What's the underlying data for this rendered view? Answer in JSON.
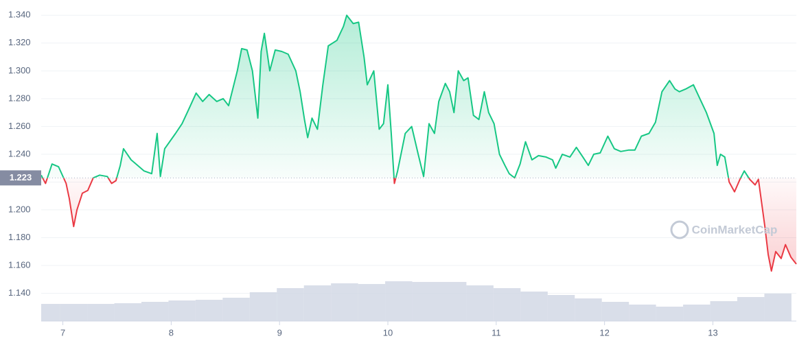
{
  "chart_data": {
    "type": "line",
    "x": [
      6.8,
      6.84,
      6.9,
      6.96,
      7.03,
      7.06,
      7.1,
      7.13,
      7.18,
      7.23,
      7.28,
      7.34,
      7.41,
      7.45,
      7.49,
      7.53,
      7.56,
      7.63,
      7.69,
      7.75,
      7.82,
      7.87,
      7.9,
      7.94,
      8.04,
      8.1,
      8.16,
      8.23,
      8.29,
      8.35,
      8.42,
      8.48,
      8.53,
      8.61,
      8.65,
      8.7,
      8.75,
      8.8,
      8.83,
      8.86,
      8.91,
      8.96,
      9.02,
      9.08,
      9.15,
      9.19,
      9.23,
      9.26,
      9.3,
      9.35,
      9.4,
      9.45,
      9.53,
      9.59,
      9.62,
      9.68,
      9.73,
      9.78,
      9.81,
      9.87,
      9.92,
      9.96,
      10.0,
      10.03,
      10.06,
      10.09,
      10.16,
      10.22,
      10.28,
      10.33,
      10.38,
      10.43,
      10.47,
      10.53,
      10.57,
      10.61,
      10.65,
      10.7,
      10.74,
      10.79,
      10.84,
      10.89,
      10.93,
      10.98,
      11.03,
      11.08,
      11.12,
      11.17,
      11.22,
      11.27,
      11.33,
      11.39,
      11.46,
      11.52,
      11.55,
      11.61,
      11.68,
      11.74,
      11.8,
      11.85,
      11.9,
      11.96,
      12.03,
      12.09,
      12.15,
      12.22,
      12.28,
      12.34,
      12.41,
      12.47,
      12.53,
      12.6,
      12.65,
      12.69,
      12.75,
      12.82,
      12.88,
      12.94,
      13.01,
      13.04,
      13.07,
      13.11,
      13.15,
      13.2,
      13.25,
      13.29,
      13.34,
      13.39,
      13.42,
      13.45,
      13.48,
      13.51,
      13.54,
      13.58,
      13.63,
      13.67,
      13.72,
      13.75,
      13.77
    ],
    "values": [
      1.225,
      1.219,
      1.233,
      1.231,
      1.219,
      1.208,
      1.188,
      1.2,
      1.212,
      1.214,
      1.223,
      1.225,
      1.224,
      1.219,
      1.221,
      1.232,
      1.244,
      1.236,
      1.232,
      1.228,
      1.226,
      1.255,
      1.224,
      1.244,
      1.255,
      1.262,
      1.272,
      1.284,
      1.278,
      1.283,
      1.278,
      1.28,
      1.275,
      1.3,
      1.316,
      1.315,
      1.3,
      1.266,
      1.314,
      1.327,
      1.3,
      1.315,
      1.314,
      1.312,
      1.3,
      1.285,
      1.265,
      1.252,
      1.266,
      1.258,
      1.29,
      1.318,
      1.322,
      1.332,
      1.34,
      1.334,
      1.335,
      1.31,
      1.29,
      1.3,
      1.258,
      1.262,
      1.29,
      1.256,
      1.219,
      1.228,
      1.255,
      1.26,
      1.24,
      1.224,
      1.262,
      1.255,
      1.278,
      1.291,
      1.285,
      1.27,
      1.3,
      1.293,
      1.295,
      1.268,
      1.265,
      1.285,
      1.27,
      1.262,
      1.24,
      1.232,
      1.226,
      1.223,
      1.233,
      1.249,
      1.236,
      1.239,
      1.238,
      1.236,
      1.23,
      1.24,
      1.238,
      1.245,
      1.238,
      1.232,
      1.24,
      1.241,
      1.253,
      1.244,
      1.242,
      1.243,
      1.243,
      1.253,
      1.255,
      1.263,
      1.285,
      1.293,
      1.287,
      1.285,
      1.287,
      1.29,
      1.28,
      1.27,
      1.255,
      1.232,
      1.24,
      1.238,
      1.22,
      1.213,
      1.222,
      1.228,
      1.222,
      1.218,
      1.222,
      1.205,
      1.188,
      1.168,
      1.156,
      1.17,
      1.165,
      1.175,
      1.166,
      1.163,
      1.161
    ],
    "up_color": "#16c784",
    "down_color": "#ea3943",
    "baseline": {
      "value": 1.223,
      "label": "1.223"
    },
    "xlim": [
      6.8,
      13.77
    ],
    "ylim": [
      1.12,
      1.351
    ],
    "xticks": [
      7,
      8,
      9,
      10,
      11,
      12,
      13
    ],
    "yticks": [
      {
        "value": 1.14,
        "label": "1.140"
      },
      {
        "value": 1.16,
        "label": "1.160"
      },
      {
        "value": 1.18,
        "label": "1.180"
      },
      {
        "value": 1.2,
        "label": "1.200"
      },
      {
        "value": 1.22,
        "label": "1.220"
      },
      {
        "value": 1.24,
        "label": "1.240"
      },
      {
        "value": 1.26,
        "label": "1.260"
      },
      {
        "value": 1.28,
        "label": "1.280"
      },
      {
        "value": 1.3,
        "label": "1.300"
      },
      {
        "value": 1.32,
        "label": "1.320"
      },
      {
        "value": 1.34,
        "label": "1.340"
      }
    ],
    "grid": true,
    "watermark": "CoinMarketCap",
    "volume": {
      "color": "#cfd6e4",
      "y2lim": [
        0,
        100
      ],
      "x": [
        6.85,
        7.1,
        7.35,
        7.6,
        7.85,
        8.1,
        8.35,
        8.6,
        8.85,
        9.1,
        9.35,
        9.6,
        9.85,
        10.1,
        10.35,
        10.6,
        10.85,
        11.1,
        11.35,
        11.6,
        11.85,
        12.1,
        12.35,
        12.6,
        12.85,
        13.1,
        13.35,
        13.6
      ],
      "values": [
        25,
        25,
        25,
        26,
        28,
        30,
        31,
        34,
        42,
        48,
        52,
        55,
        54,
        58,
        57,
        57,
        52,
        48,
        43,
        38,
        33,
        28,
        24,
        21,
        24,
        29,
        35,
        40
      ]
    }
  }
}
